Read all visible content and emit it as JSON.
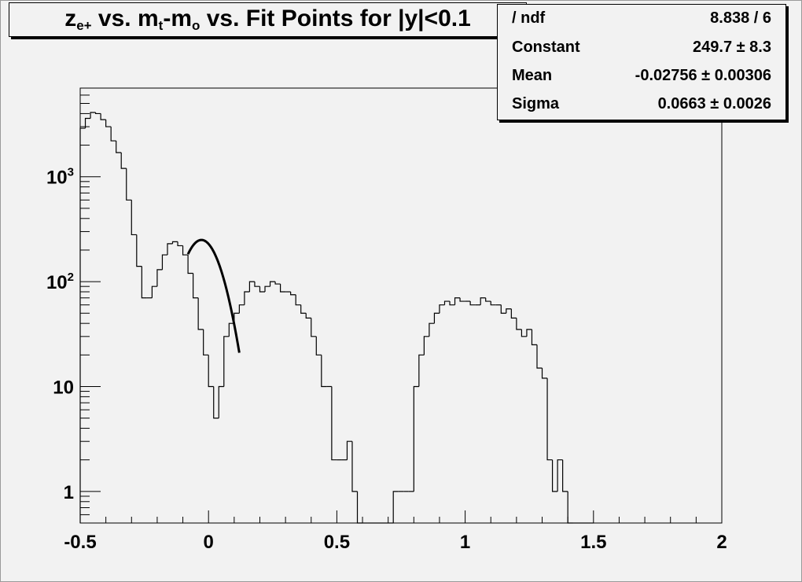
{
  "title": {
    "main": "z",
    "sub1": "e+",
    "mid1": " vs. m",
    "sub2": "t",
    "mid2": "-m",
    "sub3": "o",
    "rest": " vs. Fit Points for |y|<0.1"
  },
  "stats": [
    {
      "name": "/ ndf",
      "value": "8.838 / 6"
    },
    {
      "name": "Constant",
      "value": "249.7 ± 8.3"
    },
    {
      "name": "Mean",
      "value": "-0.02756 ± 0.00306"
    },
    {
      "name": "Sigma",
      "value": "0.0663 ± 0.0026"
    }
  ],
  "chart_data": {
    "type": "histogram",
    "y_scale": "log",
    "xlim": [
      -0.5,
      2.0
    ],
    "ylim": [
      0.5,
      7000
    ],
    "x_tick_labels": [
      "-0.5",
      "0",
      "0.5",
      "1",
      "1.5",
      "2"
    ],
    "x_tick_values": [
      -0.5,
      0,
      0.5,
      1,
      1.5,
      2
    ],
    "y_tick_labels": [
      {
        "value": 1,
        "base": "1",
        "exp": ""
      },
      {
        "value": 10,
        "base": "10",
        "exp": ""
      },
      {
        "value": 100,
        "base": "10",
        "exp": "2"
      },
      {
        "value": 1000,
        "base": "10",
        "exp": "3"
      }
    ],
    "bin_width": 0.02,
    "bin_start": -0.5,
    "counts": [
      2900,
      3600,
      4100,
      4000,
      3500,
      3000,
      2200,
      1700,
      1200,
      600,
      280,
      140,
      70,
      70,
      90,
      130,
      180,
      230,
      240,
      220,
      180,
      120,
      70,
      35,
      20,
      10,
      5,
      10,
      30,
      40,
      50,
      60,
      80,
      100,
      90,
      80,
      90,
      100,
      95,
      80,
      80,
      75,
      60,
      50,
      45,
      30,
      20,
      10,
      10,
      2,
      2,
      2,
      3,
      1,
      0,
      0,
      0,
      0,
      0,
      0,
      0,
      1,
      1,
      1,
      1,
      10,
      20,
      30,
      40,
      50,
      60,
      65,
      60,
      70,
      65,
      65,
      60,
      60,
      70,
      65,
      60,
      60,
      50,
      55,
      45,
      35,
      30,
      35,
      25,
      15,
      12,
      2,
      1,
      2,
      1,
      0,
      0,
      0,
      0,
      0
    ],
    "fit": {
      "type": "gaus",
      "constant": 249.7,
      "mean": -0.02756,
      "sigma": 0.0663,
      "range": [
        -0.08,
        0.12
      ]
    }
  }
}
